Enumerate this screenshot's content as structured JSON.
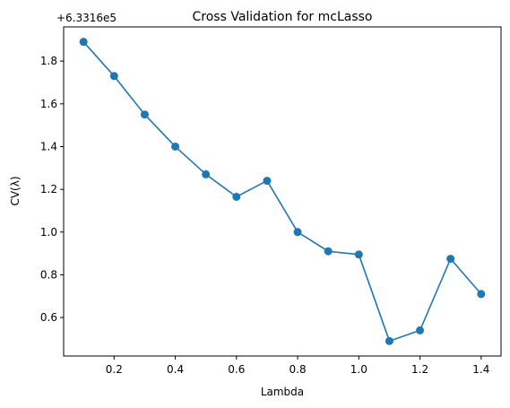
{
  "chart_data": {
    "type": "line",
    "title": "Cross Validation for mcLasso",
    "xlabel": "Lambda",
    "ylabel": "CV(λ)",
    "offset_text": "+6.3316e5",
    "x": [
      0.1,
      0.2,
      0.3,
      0.4,
      0.5,
      0.6,
      0.7,
      0.8,
      0.9,
      1.0,
      1.1,
      1.2,
      1.3,
      1.4
    ],
    "series": [
      {
        "values": [
          1.89,
          1.73,
          1.55,
          1.4,
          1.27,
          1.165,
          1.24,
          1.0,
          0.91,
          0.895,
          0.49,
          0.54,
          0.875,
          0.71
        ],
        "color": "#1f77b4",
        "marker": "circle"
      }
    ],
    "xticks": [
      "0.2",
      "0.4",
      "0.6",
      "0.8",
      "1.0",
      "1.2",
      "1.4"
    ],
    "yticks": [
      "0.6",
      "0.8",
      "1.0",
      "1.2",
      "1.4",
      "1.6",
      "1.8"
    ],
    "xlim": [
      0.035,
      1.465
    ],
    "ylim": [
      0.42,
      1.96
    ],
    "grid": false
  }
}
